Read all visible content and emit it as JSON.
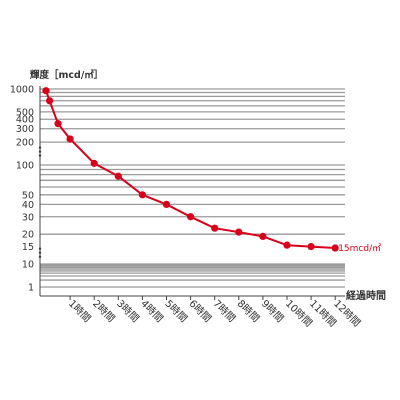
{
  "chart_data": {
    "type": "line",
    "ylabel": "輝度［mcd/㎡］",
    "xlabel": "経過時間",
    "y_scale": "log",
    "ylim": [
      1,
      1000
    ],
    "grid": true,
    "line_color": "#d8001a",
    "y_ticks": [
      {
        "label": "1000",
        "value": 1000
      },
      {
        "label": "500",
        "value": 500
      },
      {
        "label": "400",
        "value": 400
      },
      {
        "label": "300",
        "value": 300
      },
      {
        "label": "200",
        "value": 200
      },
      {
        "label": "100",
        "value": 100
      },
      {
        "label": "50",
        "value": 50
      },
      {
        "label": "40",
        "value": 40
      },
      {
        "label": "30",
        "value": 30
      },
      {
        "label": "20",
        "value": 20
      },
      {
        "label": "15",
        "value": 15
      },
      {
        "label": "10",
        "value": 10
      },
      {
        "label": "1",
        "value": 1
      }
    ],
    "y_breaks": [
      150,
      13
    ],
    "x_ticks": [
      "1時間",
      "2時間",
      "3時間",
      "4時間",
      "5時間",
      "6時間",
      "7時間",
      "8時間",
      "9時間",
      "10時間",
      "11時間",
      "12時間"
    ],
    "xlim": [
      0,
      12
    ],
    "series": [
      {
        "x": [
          0,
          0.15,
          0.5,
          1,
          2,
          3,
          4,
          5,
          6,
          7,
          8,
          9,
          10,
          11,
          12
        ],
        "y": [
          950,
          700,
          350,
          220,
          105,
          77,
          50,
          40,
          30,
          23,
          21,
          19,
          15.5,
          15,
          14.5
        ]
      }
    ],
    "annotations": [
      {
        "text": "15mcd/㎡",
        "x": 12,
        "y": 14.5
      }
    ]
  }
}
